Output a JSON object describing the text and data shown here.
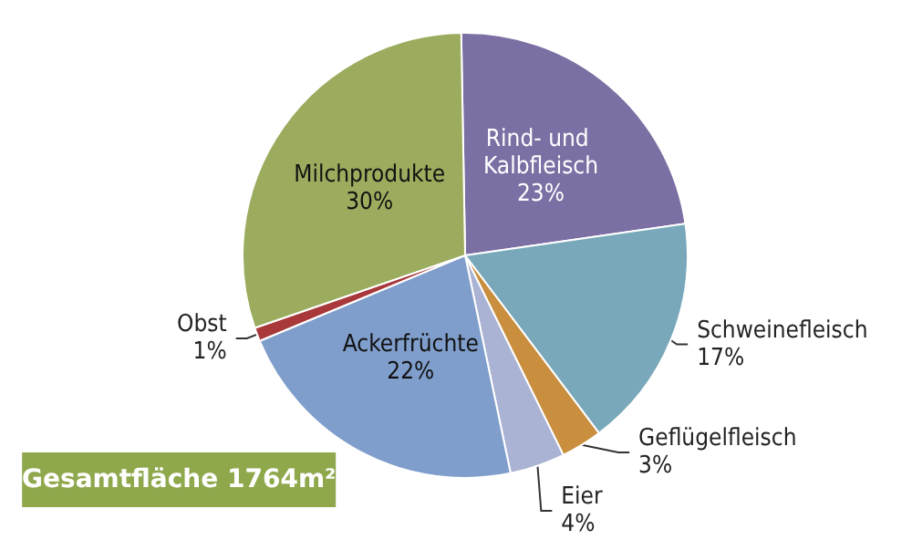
{
  "chart_data": {
    "type": "pie",
    "categories": [
      "Rind- und Kalbfleisch",
      "Schweinefleisch",
      "Geflügelfleisch",
      "Eier",
      "Ackerfrüchte",
      "Obst",
      "Milchprodukte"
    ],
    "values": [
      23,
      17,
      3,
      4,
      22,
      1,
      30
    ],
    "colors": [
      "#7b6fa3",
      "#79a8ba",
      "#c98f3f",
      "#aab3d3",
      "#7f9ecb",
      "#a8383a",
      "#9cac5e"
    ],
    "annotations": [
      "Gesamtfläche 1764m²"
    ],
    "value_labels": [
      "23%",
      "17%",
      "3%",
      "4%",
      "22%",
      "1%",
      "30%"
    ],
    "legend": false
  }
}
